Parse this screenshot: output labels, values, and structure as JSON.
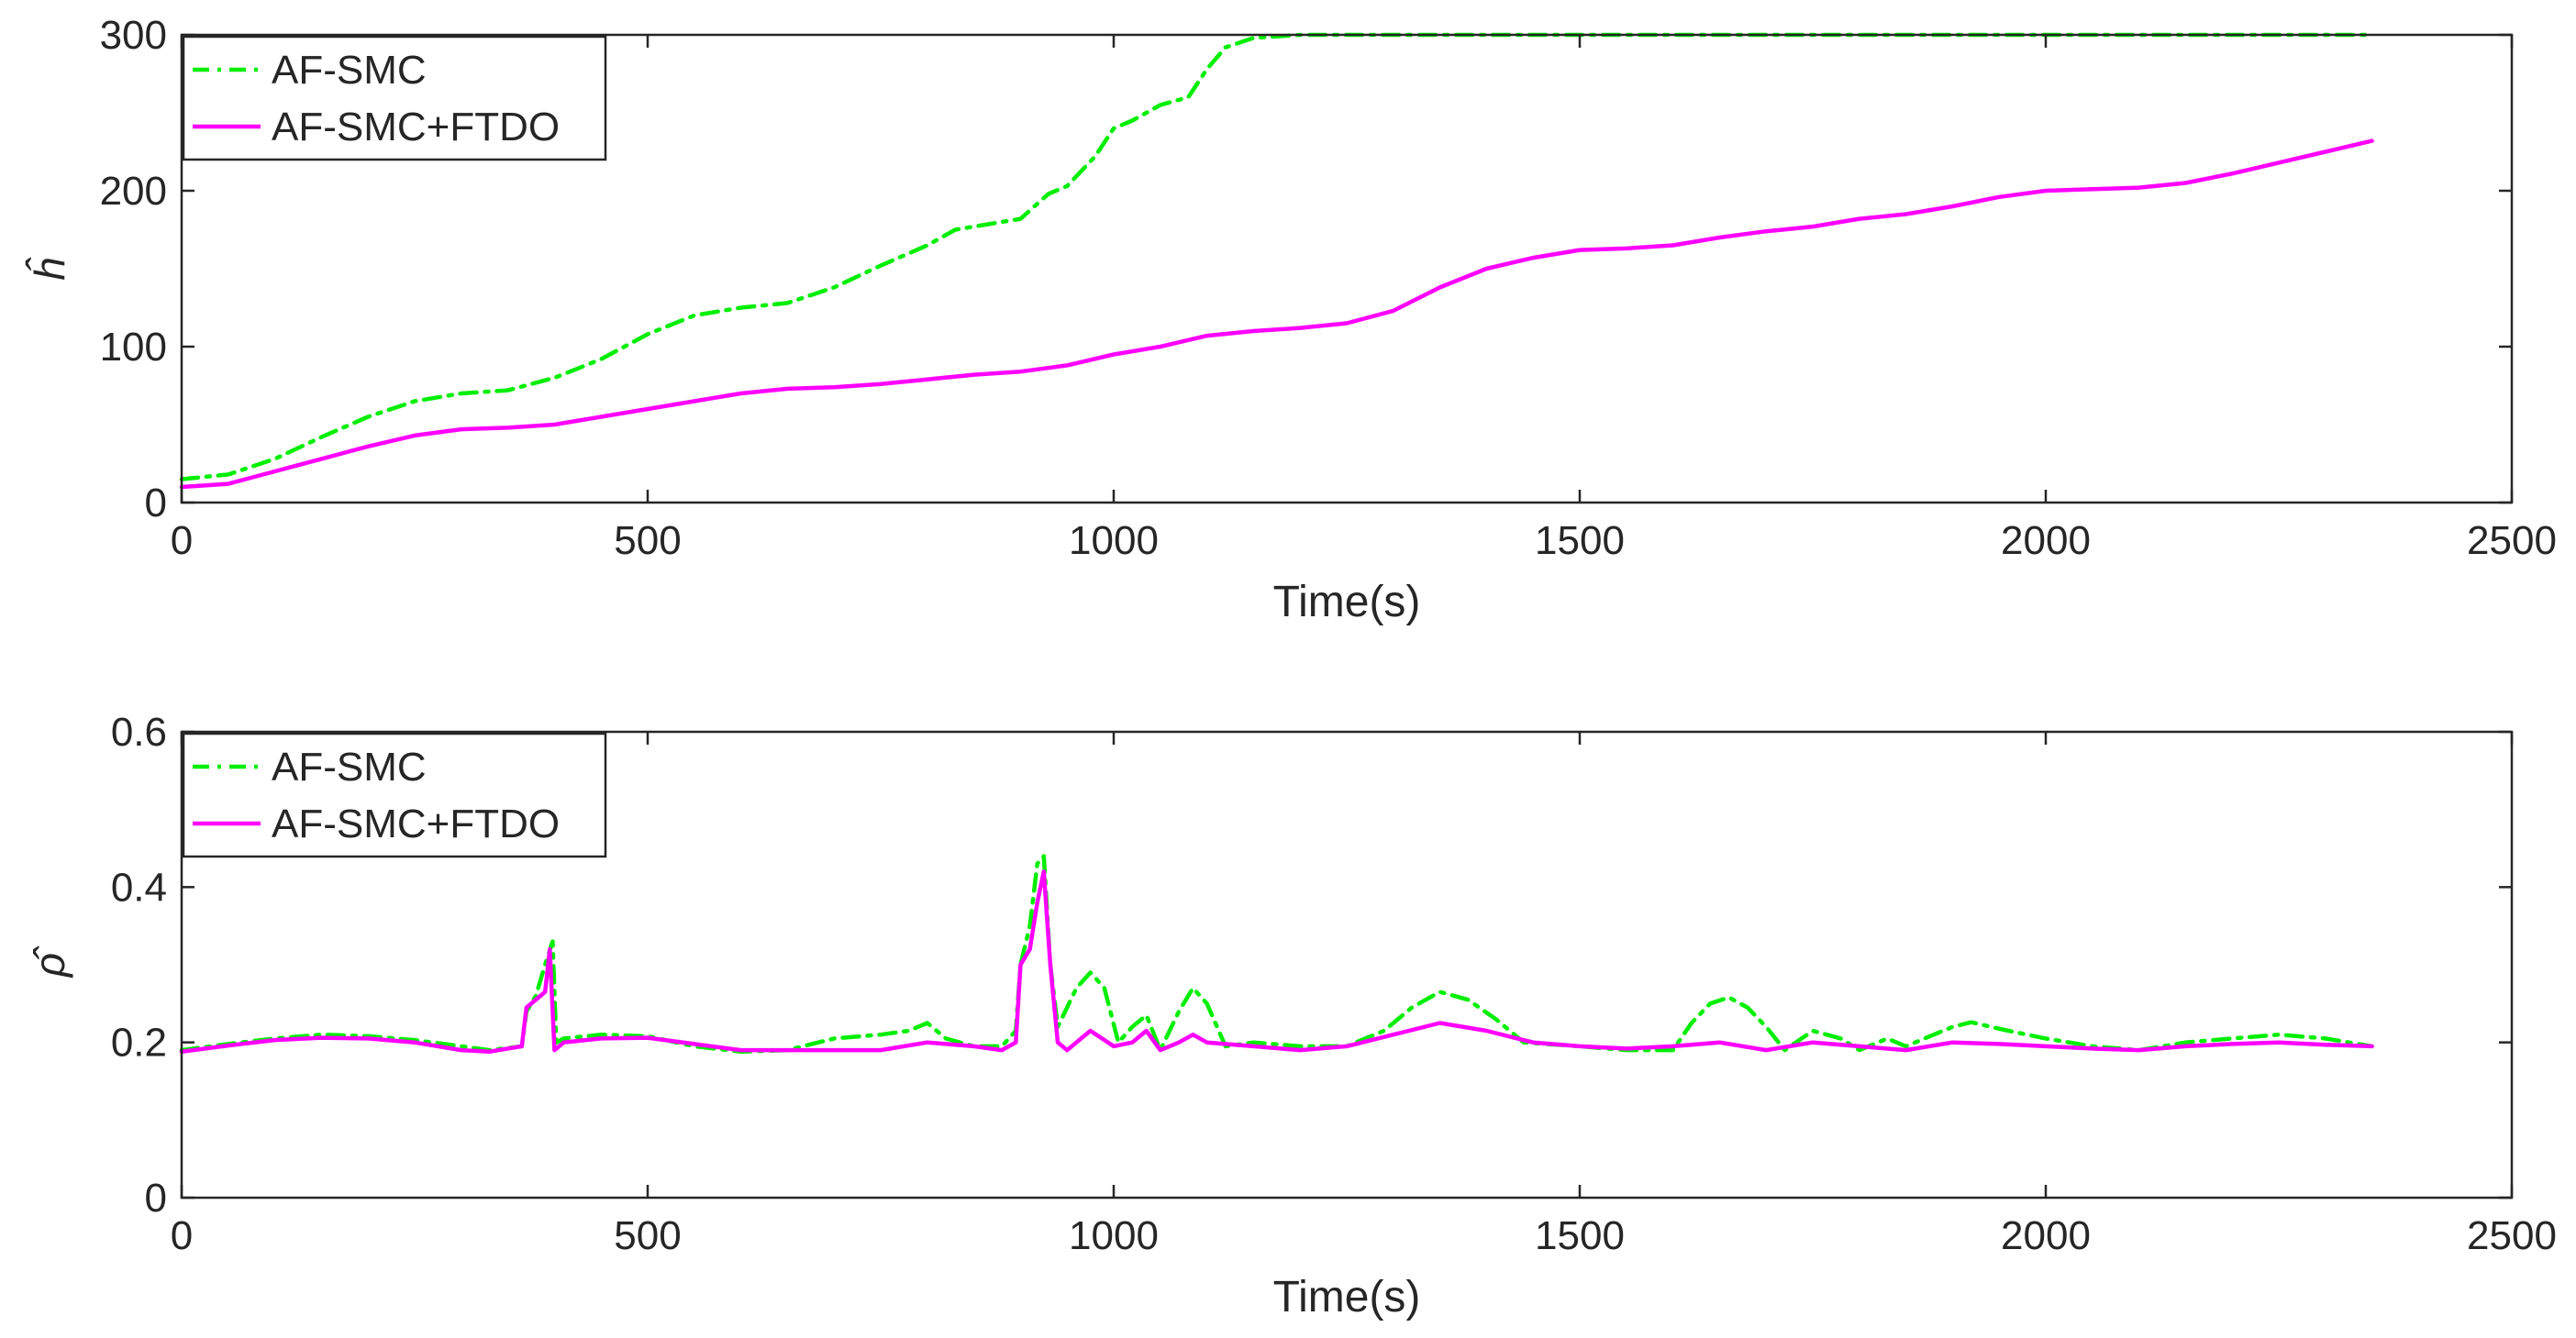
{
  "chart_data": [
    {
      "type": "line",
      "ylabel": "ĥ",
      "xlabel": "Time(s)",
      "xlim": [
        0,
        2500
      ],
      "ylim": [
        0,
        300
      ],
      "xticks": [
        "0",
        "500",
        "1000",
        "1500",
        "2000",
        "2500"
      ],
      "yticks": [
        "0",
        "100",
        "200",
        "300"
      ],
      "grid": false,
      "legend": "top-left",
      "series": [
        {
          "name": "AF-SMC",
          "color": "#00ee00",
          "style": "dash-dot",
          "points": [
            [
              0,
              15
            ],
            [
              50,
              18
            ],
            [
              100,
              28
            ],
            [
              150,
              42
            ],
            [
              200,
              55
            ],
            [
              250,
              65
            ],
            [
              300,
              70
            ],
            [
              350,
              72
            ],
            [
              400,
              80
            ],
            [
              450,
              92
            ],
            [
              500,
              108
            ],
            [
              550,
              120
            ],
            [
              600,
              125
            ],
            [
              650,
              128
            ],
            [
              700,
              138
            ],
            [
              750,
              152
            ],
            [
              800,
              165
            ],
            [
              830,
              175
            ],
            [
              880,
              180
            ],
            [
              900,
              182
            ],
            [
              930,
              198
            ],
            [
              950,
              203
            ],
            [
              980,
              222
            ],
            [
              1000,
              240
            ],
            [
              1020,
              245
            ],
            [
              1050,
              255
            ],
            [
              1080,
              260
            ],
            [
              1100,
              278
            ],
            [
              1120,
              292
            ],
            [
              1150,
              298
            ],
            [
              1200,
              300
            ],
            [
              2350,
              300
            ]
          ]
        },
        {
          "name": "AF-SMC+FTDO",
          "color": "#ff00ff",
          "style": "solid",
          "points": [
            [
              0,
              10
            ],
            [
              50,
              12
            ],
            [
              100,
              20
            ],
            [
              150,
              28
            ],
            [
              200,
              36
            ],
            [
              250,
              43
            ],
            [
              300,
              47
            ],
            [
              350,
              48
            ],
            [
              400,
              50
            ],
            [
              450,
              55
            ],
            [
              500,
              60
            ],
            [
              550,
              65
            ],
            [
              600,
              70
            ],
            [
              650,
              73
            ],
            [
              700,
              74
            ],
            [
              750,
              76
            ],
            [
              800,
              79
            ],
            [
              850,
              82
            ],
            [
              900,
              84
            ],
            [
              950,
              88
            ],
            [
              1000,
              95
            ],
            [
              1050,
              100
            ],
            [
              1100,
              107
            ],
            [
              1150,
              110
            ],
            [
              1200,
              112
            ],
            [
              1250,
              115
            ],
            [
              1300,
              123
            ],
            [
              1350,
              138
            ],
            [
              1400,
              150
            ],
            [
              1450,
              157
            ],
            [
              1500,
              162
            ],
            [
              1550,
              163
            ],
            [
              1600,
              165
            ],
            [
              1650,
              170
            ],
            [
              1700,
              174
            ],
            [
              1750,
              177
            ],
            [
              1800,
              182
            ],
            [
              1850,
              185
            ],
            [
              1900,
              190
            ],
            [
              1950,
              196
            ],
            [
              2000,
              200
            ],
            [
              2050,
              201
            ],
            [
              2100,
              202
            ],
            [
              2150,
              205
            ],
            [
              2200,
              211
            ],
            [
              2250,
              218
            ],
            [
              2300,
              225
            ],
            [
              2350,
              232
            ]
          ]
        }
      ]
    },
    {
      "type": "line",
      "ylabel": "ρ̂",
      "xlabel": "Time(s)",
      "xlim": [
        0,
        2500
      ],
      "ylim": [
        0,
        0.6
      ],
      "xticks": [
        "0",
        "500",
        "1000",
        "1500",
        "2000",
        "2500"
      ],
      "yticks": [
        "0",
        "0.2",
        "0.4",
        "0.6"
      ],
      "grid": false,
      "legend": "top-left",
      "series": [
        {
          "name": "AF-SMC",
          "color": "#00ee00",
          "style": "dash-dot",
          "points": [
            [
              0,
              0.19
            ],
            [
              50,
              0.198
            ],
            [
              100,
              0.205
            ],
            [
              150,
              0.21
            ],
            [
              200,
              0.208
            ],
            [
              250,
              0.203
            ],
            [
              300,
              0.195
            ],
            [
              330,
              0.19
            ],
            [
              365,
              0.195
            ],
            [
              370,
              0.24
            ],
            [
              380,
              0.26
            ],
            [
              390,
              0.3
            ],
            [
              398,
              0.33
            ],
            [
              402,
              0.2
            ],
            [
              410,
              0.205
            ],
            [
              450,
              0.21
            ],
            [
              500,
              0.208
            ],
            [
              550,
              0.195
            ],
            [
              600,
              0.188
            ],
            [
              650,
              0.19
            ],
            [
              700,
              0.205
            ],
            [
              750,
              0.21
            ],
            [
              780,
              0.215
            ],
            [
              800,
              0.225
            ],
            [
              820,
              0.205
            ],
            [
              850,
              0.195
            ],
            [
              880,
              0.195
            ],
            [
              895,
              0.215
            ],
            [
              900,
              0.3
            ],
            [
              910,
              0.35
            ],
            [
              918,
              0.43
            ],
            [
              925,
              0.44
            ],
            [
              932,
              0.3
            ],
            [
              940,
              0.22
            ],
            [
              960,
              0.27
            ],
            [
              975,
              0.29
            ],
            [
              990,
              0.27
            ],
            [
              1005,
              0.2
            ],
            [
              1020,
              0.22
            ],
            [
              1035,
              0.235
            ],
            [
              1050,
              0.19
            ],
            [
              1070,
              0.24
            ],
            [
              1085,
              0.27
            ],
            [
              1100,
              0.25
            ],
            [
              1120,
              0.195
            ],
            [
              1150,
              0.2
            ],
            [
              1200,
              0.195
            ],
            [
              1250,
              0.195
            ],
            [
              1290,
              0.215
            ],
            [
              1320,
              0.245
            ],
            [
              1350,
              0.265
            ],
            [
              1380,
              0.255
            ],
            [
              1410,
              0.23
            ],
            [
              1440,
              0.2
            ],
            [
              1500,
              0.195
            ],
            [
              1550,
              0.19
            ],
            [
              1600,
              0.19
            ],
            [
              1620,
              0.225
            ],
            [
              1640,
              0.25
            ],
            [
              1660,
              0.258
            ],
            [
              1680,
              0.245
            ],
            [
              1700,
              0.22
            ],
            [
              1720,
              0.19
            ],
            [
              1750,
              0.215
            ],
            [
              1780,
              0.205
            ],
            [
              1800,
              0.19
            ],
            [
              1830,
              0.205
            ],
            [
              1850,
              0.195
            ],
            [
              1900,
              0.22
            ],
            [
              1920,
              0.226
            ],
            [
              1960,
              0.215
            ],
            [
              2000,
              0.205
            ],
            [
              2050,
              0.195
            ],
            [
              2100,
              0.19
            ],
            [
              2150,
              0.2
            ],
            [
              2200,
              0.205
            ],
            [
              2250,
              0.21
            ],
            [
              2300,
              0.205
            ],
            [
              2350,
              0.195
            ]
          ]
        },
        {
          "name": "AF-SMC+FTDO",
          "color": "#ff00ff",
          "style": "solid",
          "points": [
            [
              0,
              0.188
            ],
            [
              50,
              0.196
            ],
            [
              100,
              0.203
            ],
            [
              150,
              0.206
            ],
            [
              200,
              0.205
            ],
            [
              250,
              0.2
            ],
            [
              300,
              0.19
            ],
            [
              330,
              0.188
            ],
            [
              365,
              0.195
            ],
            [
              370,
              0.245
            ],
            [
              380,
              0.255
            ],
            [
              390,
              0.265
            ],
            [
              395,
              0.32
            ],
            [
              400,
              0.19
            ],
            [
              410,
              0.2
            ],
            [
              450,
              0.205
            ],
            [
              500,
              0.206
            ],
            [
              550,
              0.198
            ],
            [
              600,
              0.19
            ],
            [
              650,
              0.19
            ],
            [
              700,
              0.19
            ],
            [
              750,
              0.19
            ],
            [
              800,
              0.2
            ],
            [
              850,
              0.195
            ],
            [
              880,
              0.19
            ],
            [
              895,
              0.2
            ],
            [
              900,
              0.3
            ],
            [
              910,
              0.32
            ],
            [
              918,
              0.38
            ],
            [
              925,
              0.42
            ],
            [
              932,
              0.3
            ],
            [
              940,
              0.2
            ],
            [
              950,
              0.19
            ],
            [
              975,
              0.215
            ],
            [
              1000,
              0.195
            ],
            [
              1020,
              0.2
            ],
            [
              1035,
              0.215
            ],
            [
              1050,
              0.19
            ],
            [
              1070,
              0.2
            ],
            [
              1085,
              0.21
            ],
            [
              1100,
              0.2
            ],
            [
              1150,
              0.195
            ],
            [
              1200,
              0.19
            ],
            [
              1250,
              0.195
            ],
            [
              1300,
              0.21
            ],
            [
              1350,
              0.225
            ],
            [
              1400,
              0.215
            ],
            [
              1450,
              0.2
            ],
            [
              1500,
              0.195
            ],
            [
              1550,
              0.192
            ],
            [
              1600,
              0.195
            ],
            [
              1650,
              0.2
            ],
            [
              1700,
              0.19
            ],
            [
              1750,
              0.2
            ],
            [
              1800,
              0.195
            ],
            [
              1850,
              0.19
            ],
            [
              1900,
              0.2
            ],
            [
              1950,
              0.198
            ],
            [
              2000,
              0.195
            ],
            [
              2050,
              0.192
            ],
            [
              2100,
              0.19
            ],
            [
              2150,
              0.195
            ],
            [
              2200,
              0.198
            ],
            [
              2250,
              0.2
            ],
            [
              2300,
              0.197
            ],
            [
              2350,
              0.195
            ]
          ]
        }
      ]
    }
  ]
}
